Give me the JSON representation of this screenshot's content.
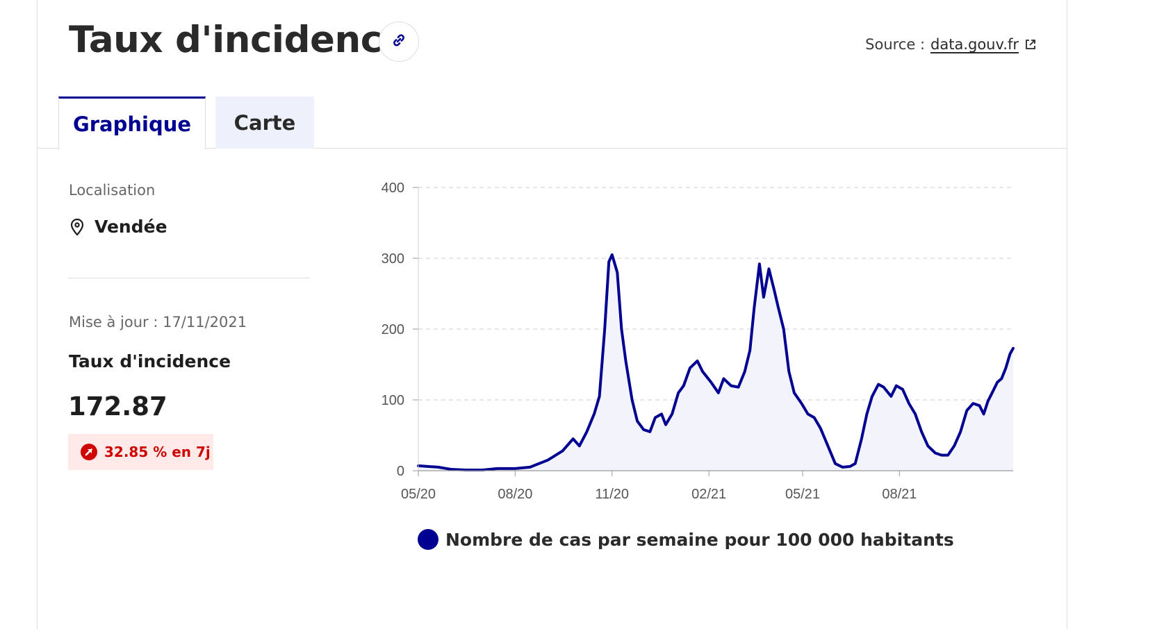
{
  "header": {
    "title": "Taux d'incidence",
    "source_prefix": "Source :",
    "source_link": "data.gouv.fr"
  },
  "tabs": [
    {
      "label": "Graphique",
      "active": true
    },
    {
      "label": "Carte",
      "active": false
    }
  ],
  "sidebar": {
    "location_label": "Localisation",
    "location_value": "Vendée",
    "update_text": "Mise à jour : 17/11/2021",
    "metric_label": "Taux d'incidence",
    "metric_value": "172.87",
    "change_text": "32.85 % en 7j"
  },
  "colors": {
    "primary": "#000091",
    "badge_bg": "#ffe9e9",
    "badge_text": "#ce0500",
    "tab_inactive_bg": "#eef0fb"
  },
  "icons": [
    "link-icon",
    "external-link-icon",
    "location-pin-icon",
    "arrow-up-right-icon"
  ],
  "chart_data": {
    "type": "area",
    "ylim": [
      0,
      400
    ],
    "yticks": [
      0,
      100,
      200,
      300,
      400
    ],
    "xticks": [
      "05/20",
      "08/20",
      "11/20",
      "02/21",
      "05/21",
      "08/21"
    ],
    "xlim": [
      "2020-05-01",
      "2021-11-17"
    ],
    "grid": true,
    "legend_position": "bottom",
    "series": [
      {
        "name": "Nombre de cas par semaine pour 100 000 habitants",
        "points": [
          [
            "2020-05-01",
            7
          ],
          [
            "2020-05-10",
            6
          ],
          [
            "2020-05-20",
            5
          ],
          [
            "2020-06-01",
            2
          ],
          [
            "2020-06-15",
            1
          ],
          [
            "2020-07-01",
            1
          ],
          [
            "2020-07-15",
            3
          ],
          [
            "2020-08-01",
            3
          ],
          [
            "2020-08-15",
            5
          ],
          [
            "2020-09-01",
            15
          ],
          [
            "2020-09-15",
            28
          ],
          [
            "2020-09-25",
            45
          ],
          [
            "2020-10-01",
            35
          ],
          [
            "2020-10-08",
            55
          ],
          [
            "2020-10-15",
            80
          ],
          [
            "2020-10-20",
            105
          ],
          [
            "2020-10-25",
            200
          ],
          [
            "2020-10-29",
            295
          ],
          [
            "2020-11-01",
            305
          ],
          [
            "2020-11-03",
            295
          ],
          [
            "2020-11-06",
            280
          ],
          [
            "2020-11-10",
            200
          ],
          [
            "2020-11-14",
            155
          ],
          [
            "2020-11-20",
            100
          ],
          [
            "2020-11-25",
            70
          ],
          [
            "2020-12-01",
            58
          ],
          [
            "2020-12-07",
            55
          ],
          [
            "2020-12-12",
            75
          ],
          [
            "2020-12-18",
            80
          ],
          [
            "2020-12-22",
            65
          ],
          [
            "2020-12-28",
            80
          ],
          [
            "2021-01-03",
            110
          ],
          [
            "2021-01-08",
            120
          ],
          [
            "2021-01-14",
            145
          ],
          [
            "2021-01-21",
            155
          ],
          [
            "2021-01-26",
            140
          ],
          [
            "2021-02-03",
            125
          ],
          [
            "2021-02-10",
            110
          ],
          [
            "2021-02-15",
            130
          ],
          [
            "2021-02-22",
            120
          ],
          [
            "2021-03-01",
            118
          ],
          [
            "2021-03-07",
            140
          ],
          [
            "2021-03-12",
            170
          ],
          [
            "2021-03-16",
            230
          ],
          [
            "2021-03-21",
            292
          ],
          [
            "2021-03-25",
            245
          ],
          [
            "2021-03-30",
            285
          ],
          [
            "2021-04-04",
            255
          ],
          [
            "2021-04-08",
            230
          ],
          [
            "2021-04-13",
            200
          ],
          [
            "2021-04-18",
            140
          ],
          [
            "2021-04-23",
            110
          ],
          [
            "2021-04-30",
            95
          ],
          [
            "2021-05-06",
            80
          ],
          [
            "2021-05-12",
            75
          ],
          [
            "2021-05-18",
            60
          ],
          [
            "2021-05-25",
            35
          ],
          [
            "2021-06-01",
            10
          ],
          [
            "2021-06-08",
            5
          ],
          [
            "2021-06-15",
            6
          ],
          [
            "2021-06-20",
            10
          ],
          [
            "2021-06-26",
            45
          ],
          [
            "2021-07-01",
            80
          ],
          [
            "2021-07-06",
            105
          ],
          [
            "2021-07-12",
            122
          ],
          [
            "2021-07-17",
            118
          ],
          [
            "2021-07-24",
            105
          ],
          [
            "2021-07-29",
            120
          ],
          [
            "2021-08-04",
            115
          ],
          [
            "2021-08-10",
            95
          ],
          [
            "2021-08-16",
            80
          ],
          [
            "2021-08-22",
            55
          ],
          [
            "2021-08-28",
            35
          ],
          [
            "2021-09-04",
            25
          ],
          [
            "2021-09-10",
            22
          ],
          [
            "2021-09-16",
            22
          ],
          [
            "2021-09-22",
            35
          ],
          [
            "2021-09-28",
            55
          ],
          [
            "2021-10-04",
            85
          ],
          [
            "2021-10-10",
            95
          ],
          [
            "2021-10-16",
            92
          ],
          [
            "2021-10-20",
            80
          ],
          [
            "2021-10-24",
            98
          ],
          [
            "2021-10-28",
            110
          ],
          [
            "2021-11-02",
            125
          ],
          [
            "2021-11-06",
            130
          ],
          [
            "2021-11-10",
            145
          ],
          [
            "2021-11-14",
            165
          ],
          [
            "2021-11-17",
            172.87
          ]
        ]
      }
    ]
  }
}
